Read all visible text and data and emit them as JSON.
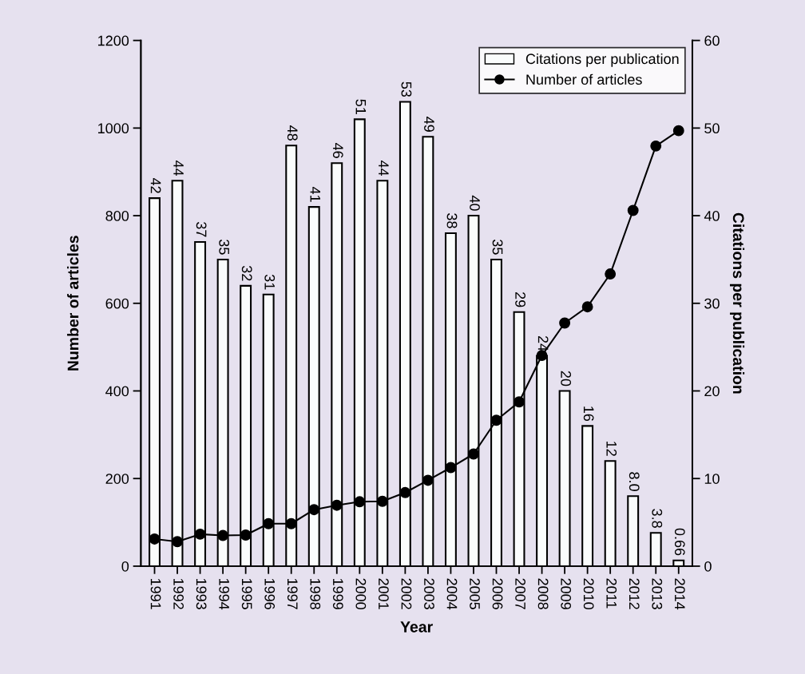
{
  "chart_data": {
    "type": "bar",
    "xlabel": "Year",
    "ylabel": "Number of articles",
    "y2label": "Citations per publication",
    "categories": [
      "1991",
      "1992",
      "1993",
      "1994",
      "1995",
      "1996",
      "1997",
      "1998",
      "1999",
      "2000",
      "2001",
      "2002",
      "2003",
      "2004",
      "2005",
      "2006",
      "2007",
      "2008",
      "2009",
      "2010",
      "2011",
      "2012",
      "2013",
      "2014"
    ],
    "series": [
      {
        "name": "Citations per publication",
        "axis": "y2",
        "color": "#fafcfc",
        "values": [
          42,
          44,
          37,
          35,
          32,
          31,
          48,
          41,
          46,
          51,
          44,
          53,
          49,
          38,
          40,
          35,
          29,
          24,
          20,
          16,
          12,
          8.0,
          3.8,
          0.66
        ],
        "value_labels": [
          "42",
          "44",
          "37",
          "35",
          "32",
          "31",
          "48",
          "41",
          "46",
          "51",
          "44",
          "53",
          "49",
          "38",
          "40",
          "35",
          "29",
          "24",
          "20",
          "16",
          "12",
          "8.0",
          "3.8",
          "0.66"
        ]
      },
      {
        "name": "Number of articles",
        "type": "line",
        "color": "#000000",
        "marker": "circle",
        "values": [
          62,
          56,
          73,
          70,
          71,
          97,
          97,
          129,
          139,
          147,
          148,
          168,
          196,
          225,
          256,
          333,
          375,
          481,
          555,
          592,
          667,
          812,
          959,
          994
        ]
      }
    ],
    "ylim": [
      0,
      1200
    ],
    "yticks": [
      0,
      200,
      400,
      600,
      800,
      1000,
      1200
    ],
    "y2lim": [
      0,
      60
    ],
    "y2ticks": [
      0,
      10,
      20,
      30,
      40,
      50,
      60
    ],
    "legend": "top right",
    "grid": false
  }
}
